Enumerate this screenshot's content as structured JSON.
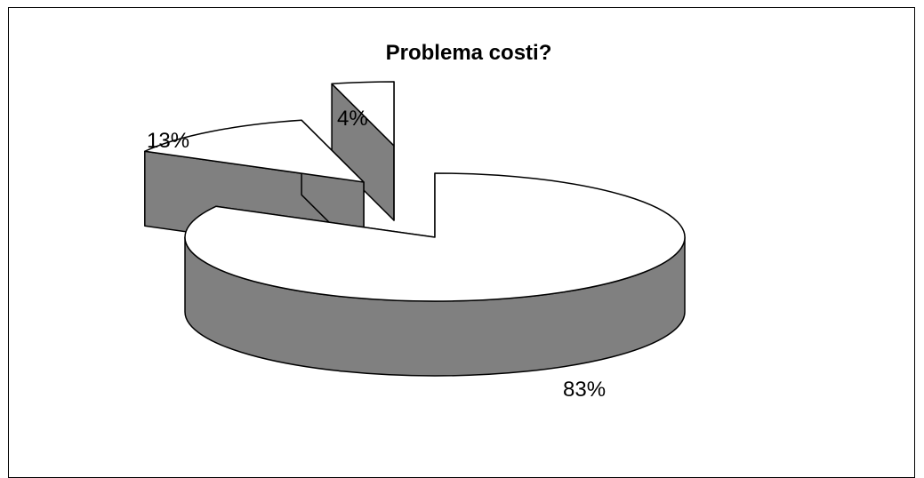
{
  "chart_data": {
    "type": "pie",
    "style": "3d-exploded",
    "title": "Problema costi?",
    "values": [
      83,
      13,
      4
    ],
    "labels": [
      "83%",
      "13%",
      "4%"
    ],
    "top_color": "#ffffff",
    "side_color": "#808080",
    "edge_color": "#000000",
    "legend": "none"
  }
}
